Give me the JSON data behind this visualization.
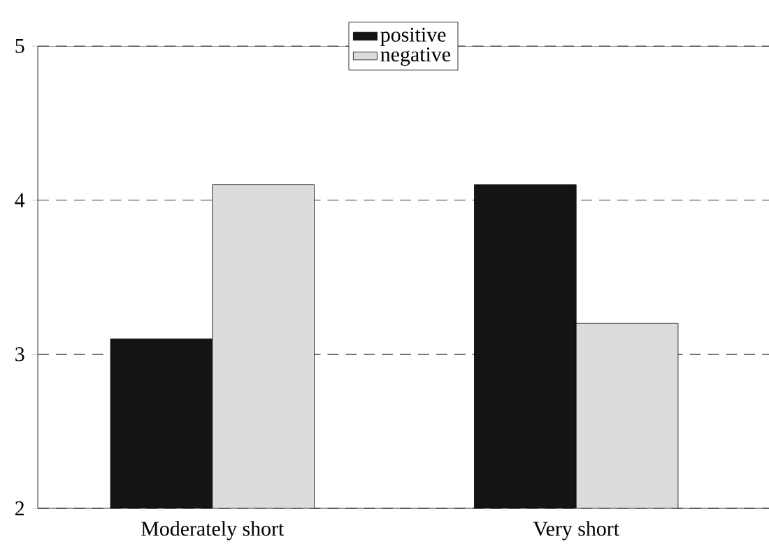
{
  "chart_data": {
    "type": "bar",
    "categories": [
      "Moderately short",
      "Very short"
    ],
    "series": [
      {
        "name": "positive",
        "color": "#141414",
        "values": [
          3.1,
          4.1
        ]
      },
      {
        "name": "negative",
        "color": "#dcdcdc",
        "values": [
          4.1,
          3.2
        ]
      }
    ],
    "ylim": [
      2,
      5
    ],
    "yticks": [
      2,
      3,
      4,
      5
    ],
    "grid": "y",
    "legend": "top"
  }
}
